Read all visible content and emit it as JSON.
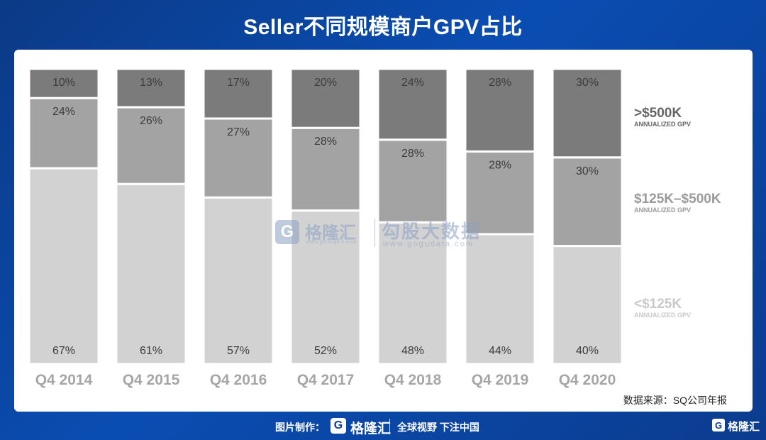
{
  "title": "Seller不同规模商户GPV占比",
  "source": "数据来源：SQ公司年报",
  "watermark": {
    "logo_letter": "G",
    "brand_name": "格隆汇",
    "brand_url": "www.gelonghui.com",
    "brand_name2": "勾股大数据",
    "brand_url2": "www.gogudata.com"
  },
  "footer": {
    "credit_label": "图片制作：",
    "logo_letter": "G",
    "brand": "格隆汇",
    "slogan": "全球视野 下注中国",
    "corner_brand": "格隆汇"
  },
  "colors": {
    "top": "#7b7b7b",
    "mid": "#a3a3a3",
    "bottom": "#d2d2d2",
    "legend_top": "#666666",
    "legend_mid": "#9a9a9a",
    "legend_bottom": "#c9c9c9"
  },
  "chart_data": {
    "type": "bar",
    "stacked": true,
    "title": "Seller不同规模商户GPV占比",
    "categories": [
      "Q4 2014",
      "Q4 2015",
      "Q4 2016",
      "Q4 2017",
      "Q4 2018",
      "Q4 2019",
      "Q4 2020"
    ],
    "ylim": [
      0,
      100
    ],
    "series": [
      {
        "name": "<$125K",
        "sub": "ANNUALIZED GPV",
        "values": [
          67,
          61,
          57,
          52,
          48,
          44,
          40
        ],
        "labels": [
          "67%",
          "61%",
          "57%",
          "52%",
          "48%",
          "44%",
          "40%"
        ]
      },
      {
        "name": "$125K–$500K",
        "sub": "ANNUALIZED GPV",
        "values": [
          24,
          26,
          27,
          28,
          28,
          28,
          30
        ],
        "labels": [
          "24%",
          "26%",
          "27%",
          "28%",
          "28%",
          "28%",
          "30%"
        ]
      },
      {
        "name": ">$500K",
        "sub": "ANNUALIZED GPV",
        "values": [
          10,
          13,
          17,
          20,
          24,
          28,
          30
        ],
        "labels": [
          "10%",
          "13%",
          "17%",
          "20%",
          "24%",
          "28%",
          "30%"
        ]
      }
    ],
    "legend": "right",
    "grid": false
  }
}
